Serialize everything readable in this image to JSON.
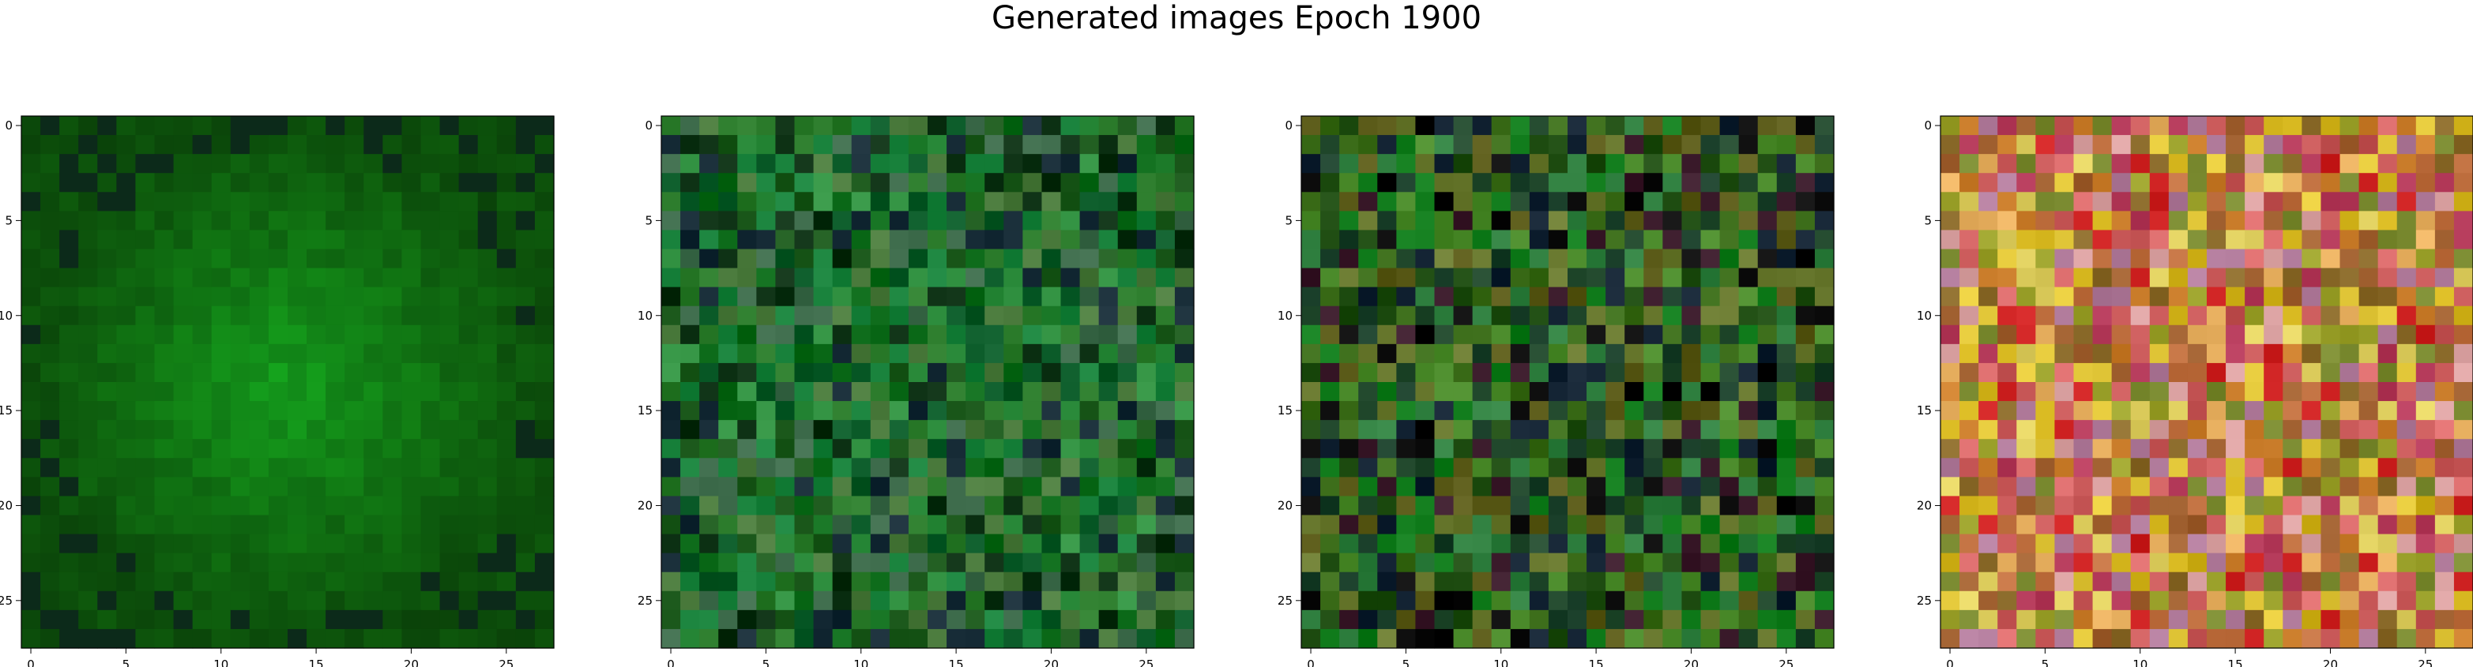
{
  "figure": {
    "suptitle": "Generated images Epoch 1900"
  },
  "chart_data": [
    {
      "type": "heatmap",
      "panel": 1,
      "x_ticks": [
        "0",
        "5",
        "10",
        "15",
        "20",
        "25"
      ],
      "y_ticks": [
        "0",
        "5",
        "10",
        "15",
        "20",
        "25"
      ],
      "grid_size": [
        28,
        28
      ],
      "palette": [
        "#0d3f0d",
        "#0e5a12",
        "#0f6e12",
        "#127f12",
        "#158a14",
        "#1a9418",
        "#0c2a1a",
        "#2b6d2a"
      ],
      "style": "radial-green",
      "seed": 11
    },
    {
      "type": "heatmap",
      "panel": 2,
      "x_ticks": [
        "0",
        "5",
        "10",
        "15",
        "20",
        "25"
      ],
      "y_ticks": [
        "0",
        "5",
        "10",
        "15",
        "20",
        "25"
      ],
      "grid_size": [
        28,
        28
      ],
      "palette": [
        "#0b2f12",
        "#1d5a1d",
        "#2a7a2a",
        "#0d6b1a",
        "#17803a",
        "#3c6a4a",
        "#152a35",
        "#4a7a3c",
        "#0a5a28",
        "#2f8f3f"
      ],
      "style": "mottled",
      "seed": 23
    },
    {
      "type": "heatmap",
      "panel": 3,
      "x_ticks": [
        "0",
        "5",
        "10",
        "15",
        "20",
        "25"
      ],
      "y_ticks": [
        "0",
        "5",
        "10",
        "15",
        "20",
        "25"
      ],
      "grid_size": [
        28,
        28
      ],
      "palette": [
        "#1f4d12",
        "#3a6b18",
        "#0f7a1a",
        "#5a5a18",
        "#234a2e",
        "#102030",
        "#3a1a2a",
        "#6a7a30",
        "#2f7f3f",
        "#0a0a0a",
        "#4a8a2a",
        "#1a3f2a"
      ],
      "style": "mottled",
      "seed": 37
    },
    {
      "type": "heatmap",
      "panel": 4,
      "x_ticks": [
        "0",
        "5",
        "10",
        "15",
        "20",
        "25"
      ],
      "y_ticks": [
        "0",
        "5",
        "10",
        "15",
        "20",
        "25"
      ],
      "grid_size": [
        28,
        28
      ],
      "palette": [
        "#d1b21a",
        "#c97c2a",
        "#d96a6a",
        "#b43a5a",
        "#9aa02a",
        "#e3c83a",
        "#c05050",
        "#a06030",
        "#d9a0a0",
        "#8a6a2a",
        "#e0d060",
        "#b07a9a",
        "#cc2020",
        "#7a8a30",
        "#e8b060",
        "#c07040"
      ],
      "style": "mottled",
      "seed": 53
    }
  ]
}
